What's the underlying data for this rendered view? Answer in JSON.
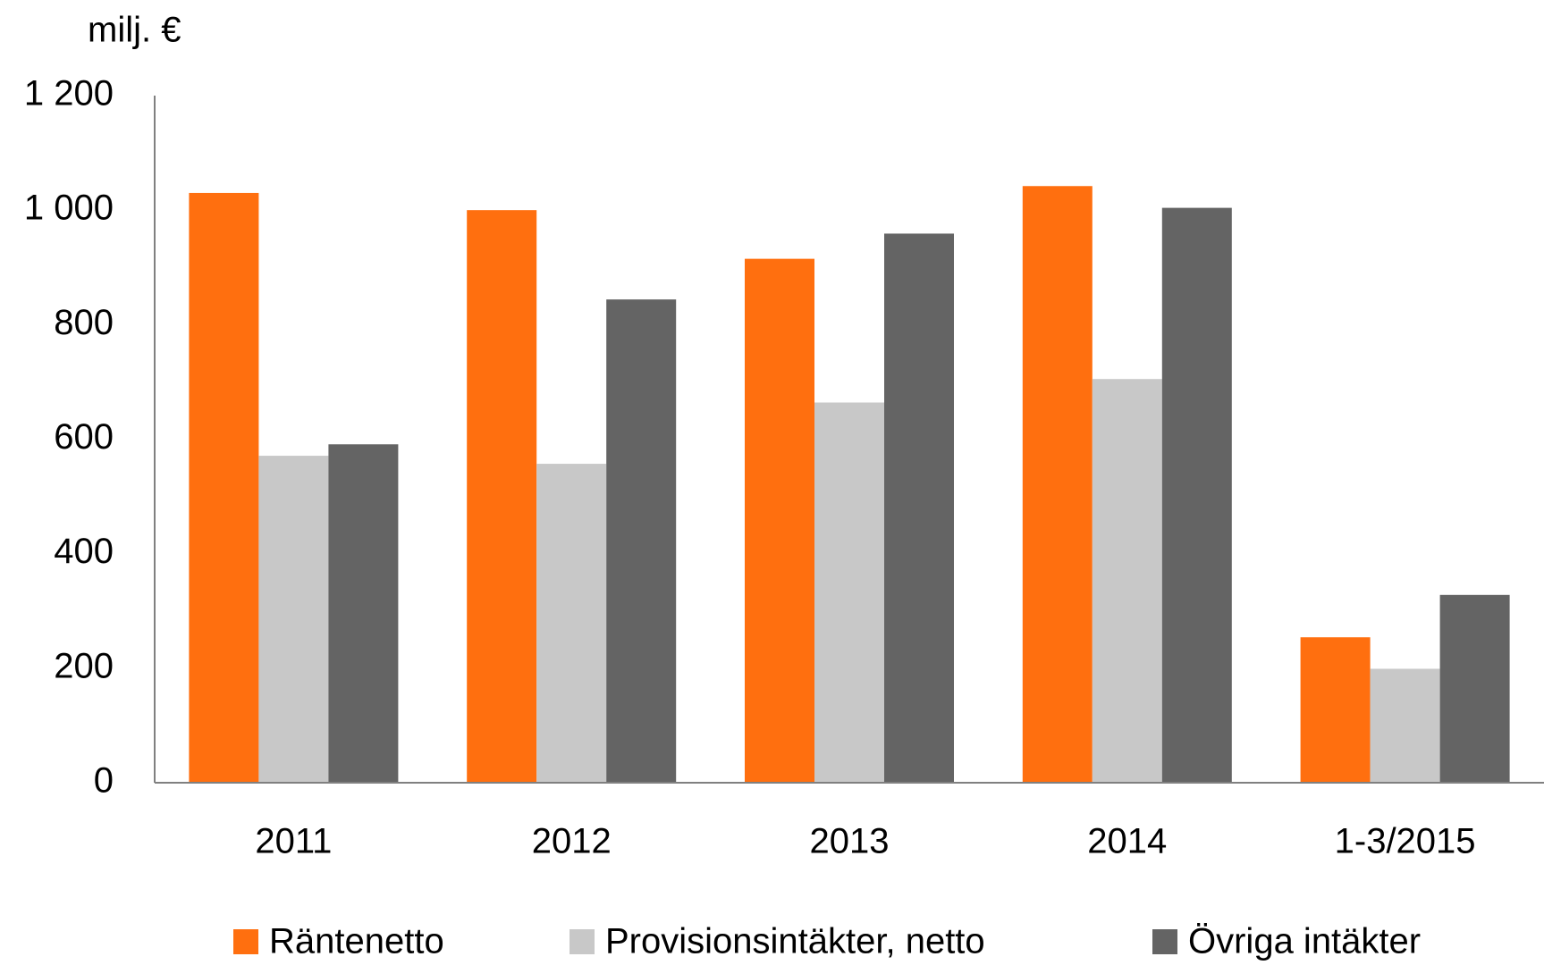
{
  "chart_data": {
    "type": "bar",
    "y_label": "milj. €",
    "categories": [
      "2011",
      "2012",
      "2013",
      "2014",
      "1-3/2015"
    ],
    "series": [
      {
        "name": "Räntenetto",
        "color": "#ff6f0f",
        "values": [
          1030,
          1000,
          915,
          1042,
          254
        ]
      },
      {
        "name": "Provisionsintäkter, netto",
        "color": "#c8c8c8",
        "values": [
          571,
          557,
          664,
          705,
          199
        ]
      },
      {
        "name": "Övriga intäkter",
        "color": "#646464",
        "values": [
          591,
          844,
          959,
          1004,
          328
        ]
      }
    ],
    "ylim": [
      0,
      1200
    ],
    "yticks": [
      0,
      200,
      400,
      600,
      800,
      {
        "value": 1000,
        "label": "1 000"
      },
      {
        "value": 1200,
        "label": "1 200"
      }
    ],
    "grid": false,
    "legend": "bottom"
  }
}
